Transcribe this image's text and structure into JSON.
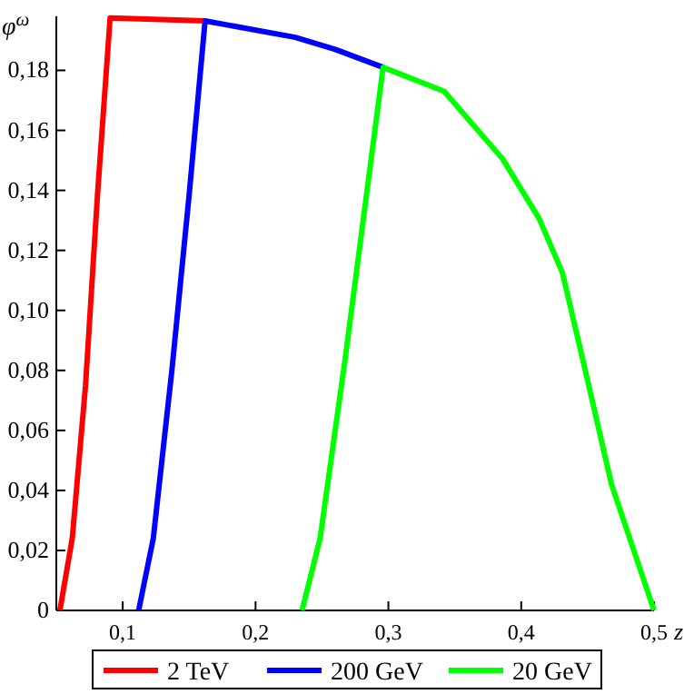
{
  "chart_data": {
    "type": "line",
    "xlabel": "z",
    "ylabel": "φ$^{ω}$",
    "xlim": [
      0.05,
      0.5
    ],
    "ylim": [
      0,
      0.198
    ],
    "xticks": [
      {
        "value": 0.1,
        "label": "0,1"
      },
      {
        "value": 0.2,
        "label": "0,2"
      },
      {
        "value": 0.3,
        "label": "0,3"
      },
      {
        "value": 0.4,
        "label": "0,4"
      },
      {
        "value": 0.5,
        "label": "0,5"
      }
    ],
    "yticks": [
      0,
      {
        "value": 0.02,
        "label": "0,02"
      },
      {
        "value": 0.04,
        "label": "0,04"
      },
      {
        "value": 0.06,
        "label": "0,06"
      },
      {
        "value": 0.08,
        "label": "0,08"
      },
      {
        "value": 0.1,
        "label": "0,10"
      },
      {
        "value": 0.12,
        "label": "0,12"
      },
      {
        "value": 0.14,
        "label": "0,14"
      },
      {
        "value": 0.16,
        "label": "0,16"
      },
      {
        "value": 0.18,
        "label": "0,18"
      }
    ],
    "legend": "bottom",
    "grid": false,
    "marker": "none",
    "line_style": "solid",
    "series": [
      {
        "name": "2 TeV",
        "color": "#ff0000",
        "x": [
          0.0527,
          0.062,
          0.072,
          0.081,
          0.0905,
          0.162
        ],
        "values": [
          0,
          0.024,
          0.075,
          0.1385,
          0.1975,
          0.1965
        ]
      },
      {
        "name": "200 GeV",
        "color": "#0000ff",
        "x": [
          0.112,
          0.123,
          0.137,
          0.15,
          0.162,
          0.23,
          0.26,
          0.296
        ],
        "values": [
          0,
          0.024,
          0.08,
          0.1385,
          0.1965,
          0.191,
          0.187,
          0.181
        ]
      },
      {
        "name": "20 GeV",
        "color": "#00ff00",
        "x": [
          0.235,
          0.2486,
          0.2676,
          0.296,
          0.342,
          0.386,
          0.4135,
          0.431,
          0.446,
          0.468,
          0.484,
          0.5
        ],
        "values": [
          0,
          0.024,
          0.0843,
          0.181,
          0.173,
          0.1505,
          0.1306,
          0.1126,
          0.0843,
          0.042,
          0.021,
          0
        ]
      }
    ]
  }
}
